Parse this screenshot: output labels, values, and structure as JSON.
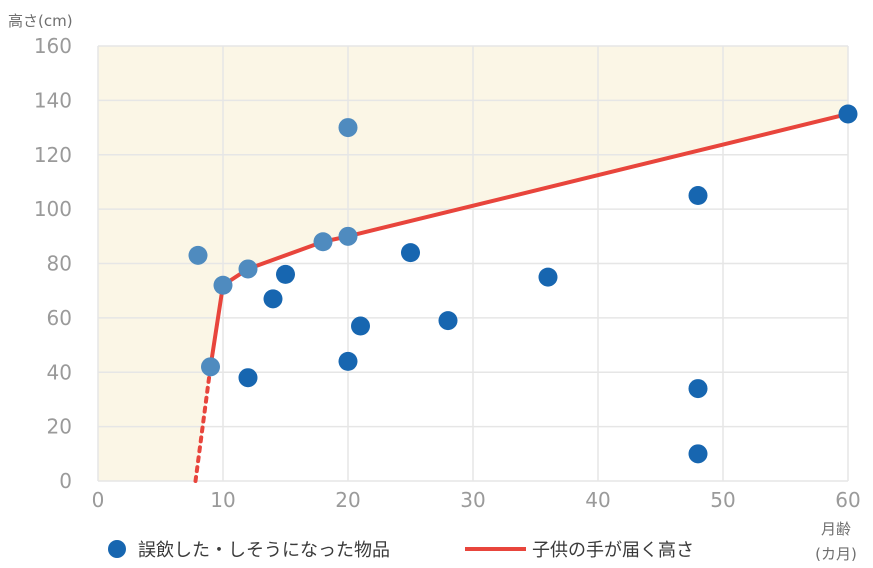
{
  "chart_data": {
    "type": "scatter",
    "ylabel": "高さ(cm)",
    "xlabel_line1": "月齢",
    "xlabel_line2": "(カ月)",
    "xlim": [
      0,
      60
    ],
    "ylim": [
      0,
      160
    ],
    "x_ticks": [
      0,
      10,
      20,
      30,
      40,
      50,
      60
    ],
    "y_ticks": [
      0,
      20,
      40,
      60,
      80,
      100,
      120,
      140,
      160
    ],
    "grid": true,
    "legend_position": "bottom",
    "shaded_region": "above reach line",
    "colors": {
      "points": "#1766b0",
      "points_light": "#4f8bbf",
      "reach_line": "#e8453c",
      "shade": "#fbf6e6",
      "grid": "#e6e6e6"
    },
    "series": [
      {
        "name": "誤飲した・しそうになった物品",
        "kind": "points",
        "points": [
          {
            "x": 8,
            "y": 83
          },
          {
            "x": 9,
            "y": 42
          },
          {
            "x": 10,
            "y": 72
          },
          {
            "x": 12,
            "y": 78
          },
          {
            "x": 12,
            "y": 38
          },
          {
            "x": 14,
            "y": 67
          },
          {
            "x": 15,
            "y": 76
          },
          {
            "x": 18,
            "y": 88
          },
          {
            "x": 20,
            "y": 130
          },
          {
            "x": 20,
            "y": 90
          },
          {
            "x": 20,
            "y": 44
          },
          {
            "x": 21,
            "y": 57
          },
          {
            "x": 25,
            "y": 84
          },
          {
            "x": 28,
            "y": 59
          },
          {
            "x": 36,
            "y": 75
          },
          {
            "x": 48,
            "y": 105
          },
          {
            "x": 48,
            "y": 34
          },
          {
            "x": 48,
            "y": 10
          },
          {
            "x": 60,
            "y": 135
          }
        ]
      },
      {
        "name": "子供の手が届く高さ",
        "kind": "line",
        "points": [
          {
            "x": 9,
            "y": 42
          },
          {
            "x": 10,
            "y": 72
          },
          {
            "x": 12,
            "y": 78
          },
          {
            "x": 18,
            "y": 88
          },
          {
            "x": 20,
            "y": 90
          },
          {
            "x": 60,
            "y": 135
          }
        ],
        "dotted_extension": [
          {
            "x": 7.8,
            "y": 0
          },
          {
            "x": 9,
            "y": 42
          }
        ]
      }
    ]
  }
}
